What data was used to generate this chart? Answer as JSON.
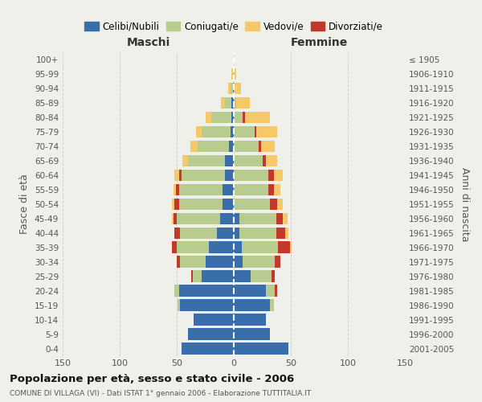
{
  "age_groups": [
    "0-4",
    "5-9",
    "10-14",
    "15-19",
    "20-24",
    "25-29",
    "30-34",
    "35-39",
    "40-44",
    "45-49",
    "50-54",
    "55-59",
    "60-64",
    "65-69",
    "70-74",
    "75-79",
    "80-84",
    "85-89",
    "90-94",
    "95-99",
    "100+"
  ],
  "birth_years": [
    "2001-2005",
    "1996-2000",
    "1991-1995",
    "1986-1990",
    "1981-1985",
    "1976-1980",
    "1971-1975",
    "1966-1970",
    "1961-1965",
    "1956-1960",
    "1951-1955",
    "1946-1950",
    "1941-1945",
    "1936-1940",
    "1931-1935",
    "1926-1930",
    "1921-1925",
    "1916-1920",
    "1911-1915",
    "1906-1910",
    "≤ 1905"
  ],
  "maschi_celibi": [
    46,
    40,
    35,
    47,
    48,
    28,
    25,
    22,
    15,
    12,
    10,
    10,
    8,
    8,
    4,
    3,
    2,
    2,
    1,
    0,
    0
  ],
  "maschi_coniugati": [
    0,
    0,
    0,
    2,
    4,
    8,
    22,
    28,
    32,
    38,
    38,
    38,
    38,
    32,
    28,
    25,
    18,
    6,
    2,
    1,
    0
  ],
  "maschi_vedovi": [
    0,
    0,
    0,
    0,
    0,
    0,
    0,
    0,
    0,
    1,
    2,
    2,
    4,
    5,
    6,
    5,
    5,
    3,
    2,
    1,
    0
  ],
  "maschi_divorziati": [
    0,
    0,
    0,
    0,
    0,
    1,
    3,
    4,
    5,
    3,
    4,
    3,
    2,
    0,
    0,
    0,
    0,
    0,
    0,
    0,
    0
  ],
  "femmine_nubili": [
    48,
    32,
    28,
    32,
    28,
    15,
    8,
    7,
    5,
    5,
    0,
    0,
    0,
    0,
    0,
    0,
    0,
    0,
    0,
    0,
    0
  ],
  "femmine_coniugate": [
    0,
    0,
    0,
    3,
    8,
    18,
    28,
    32,
    32,
    32,
    32,
    30,
    30,
    25,
    22,
    18,
    8,
    2,
    1,
    0,
    0
  ],
  "femmine_vedove": [
    0,
    0,
    0,
    0,
    0,
    0,
    0,
    2,
    3,
    4,
    5,
    6,
    8,
    10,
    12,
    18,
    22,
    12,
    5,
    2,
    0
  ],
  "femmine_divorziate": [
    0,
    0,
    0,
    0,
    2,
    3,
    5,
    10,
    8,
    6,
    6,
    5,
    5,
    3,
    2,
    2,
    2,
    0,
    0,
    0,
    0
  ],
  "color_celibi": "#3a6eaa",
  "color_coniugati": "#b8cc90",
  "color_vedovi": "#f5c96a",
  "color_divorziati": "#c0392b",
  "background_color": "#f0f0eb",
  "grid_color": "#cccccc",
  "xlim": 150,
  "title": "Popolazione per età, sesso e stato civile - 2006",
  "subtitle": "COMUNE DI VILLAGA (VI) - Dati ISTAT 1° gennaio 2006 - Elaborazione TUTTITALIA.IT",
  "xlabel_left": "Maschi",
  "xlabel_right": "Femmine",
  "ylabel_left": "Fasce di età",
  "ylabel_right": "Anni di nascita"
}
